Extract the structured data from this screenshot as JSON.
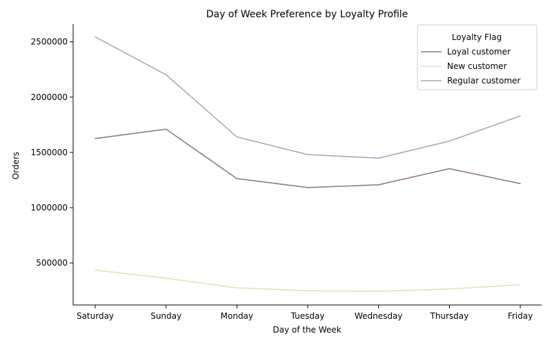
{
  "chart_data": {
    "type": "line",
    "title": "Day of Week Preference by Loyalty Profile",
    "xlabel": "Day of the Week",
    "ylabel": "Orders",
    "categories": [
      "Saturday",
      "Sunday",
      "Monday",
      "Tuesday",
      "Wednesday",
      "Thursday",
      "Friday"
    ],
    "yticks": [
      500000,
      1000000,
      1500000,
      2000000,
      2500000
    ],
    "ylim": [
      120000,
      2660000
    ],
    "grid": false,
    "legend": {
      "title": "Loyalty Flag",
      "placement": "top-right"
    },
    "series": [
      {
        "name": "Loyal customer",
        "color": "#937a7c",
        "values": [
          1625000,
          1710000,
          1263000,
          1182000,
          1207000,
          1353000,
          1218000
        ]
      },
      {
        "name": "New customer",
        "color": "#dde4bd",
        "values": [
          435000,
          362000,
          275000,
          249000,
          243000,
          265000,
          304000
        ]
      },
      {
        "name": "Regular customer",
        "color": "#aaa7c0",
        "values": [
          2545000,
          2202000,
          1640000,
          1480000,
          1448000,
          1602000,
          1830000
        ]
      }
    ]
  }
}
